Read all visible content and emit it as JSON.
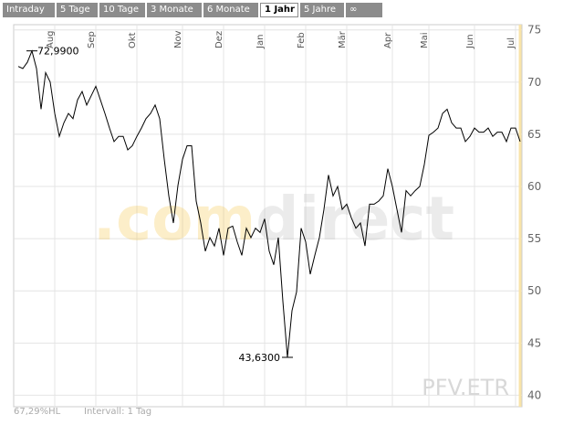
{
  "tabs": [
    {
      "label": "Intraday"
    },
    {
      "label": "5 Tage"
    },
    {
      "label": "10 Tage"
    },
    {
      "label": "3 Monate"
    },
    {
      "label": "6 Monate"
    },
    {
      "label": "1 Jahr",
      "active": true
    },
    {
      "label": "5 Jahre"
    },
    {
      "label": "∞"
    }
  ],
  "chart_data": {
    "type": "line",
    "color": "#000000",
    "grid": true,
    "categories": [
      null,
      null,
      null,
      null,
      null,
      null,
      null,
      null,
      "Aug",
      null,
      null,
      null,
      null,
      null,
      null,
      null,
      null,
      "Sep",
      null,
      null,
      null,
      null,
      null,
      null,
      null,
      null,
      "Okt",
      null,
      null,
      null,
      null,
      null,
      null,
      null,
      null,
      null,
      "Nov",
      null,
      null,
      null,
      null,
      null,
      null,
      null,
      null,
      "Dez",
      null,
      null,
      null,
      null,
      null,
      null,
      null,
      null,
      "Jan",
      null,
      null,
      null,
      null,
      null,
      null,
      null,
      null,
      "Feb",
      null,
      null,
      null,
      null,
      null,
      null,
      null,
      null,
      "Mär",
      null,
      null,
      null,
      null,
      null,
      null,
      null,
      null,
      null,
      "Apr",
      null,
      null,
      null,
      null,
      null,
      null,
      null,
      "Mai",
      null,
      null,
      null,
      null,
      null,
      null,
      null,
      null,
      null,
      "Jun",
      null,
      null,
      null,
      null,
      null,
      null,
      null,
      null,
      "Jul",
      null
    ],
    "values": [
      71.5,
      71.3,
      71.9,
      72.99,
      71.3,
      67.4,
      70.9,
      70,
      67,
      64.8,
      66.1,
      67,
      66.5,
      68.3,
      69.1,
      67.8,
      68.7,
      69.6,
      68.3,
      67,
      65.6,
      64.3,
      64.8,
      64.8,
      63.5,
      63.9,
      64.8,
      65.6,
      66.5,
      67,
      67.8,
      66.5,
      62.6,
      59.1,
      56.5,
      60.1,
      62.6,
      63.9,
      63.9,
      58.6,
      56.5,
      53.8,
      55.1,
      54.3,
      56,
      53.4,
      56,
      56.2,
      54.7,
      53.4,
      56,
      55.1,
      56,
      55.6,
      56.9,
      53.8,
      52.5,
      55.1,
      49,
      43.63,
      48.1,
      49.9,
      56,
      54.7,
      51.6,
      53.4,
      55.1,
      57.8,
      61.1,
      59.1,
      60,
      57.8,
      58.3,
      57,
      56,
      56.5,
      54.3,
      58.3,
      58.3,
      58.6,
      59.1,
      61.7,
      60,
      57.8,
      55.6,
      59.6,
      59.1,
      59.6,
      60,
      62.1,
      64.9,
      65.2,
      65.6,
      67,
      67.4,
      66.1,
      65.6,
      65.6,
      64.3,
      64.8,
      65.6,
      65.2,
      65.2,
      65.6,
      64.8,
      65.2,
      65.2,
      64.3,
      65.6,
      65.6,
      64.3
    ],
    "ylim": [
      38.9,
      75.5
    ],
    "yticks": [
      40,
      45,
      50,
      55,
      60,
      65,
      70,
      75
    ],
    "annotations": [
      {
        "text": "72,9900",
        "value": 72.99
      },
      {
        "text": "43,6300",
        "value": 43.63
      }
    ],
    "watermark": "PFV.ETR",
    "logo": [
      ".com",
      "direct"
    ],
    "footer": [
      "67,29%HL",
      "Intervall: 1 Tag"
    ]
  }
}
